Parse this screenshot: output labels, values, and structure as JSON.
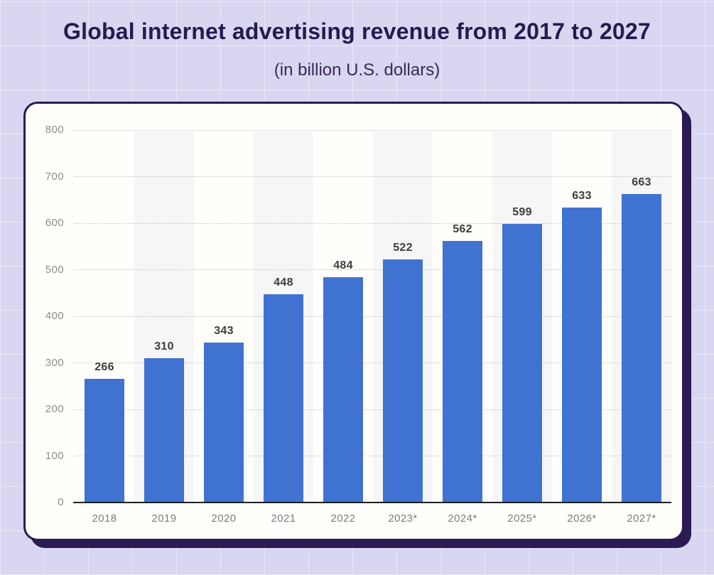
{
  "header": {
    "title": "Global internet advertising revenue from 2017 to 2027",
    "subtitle": "(in billion U.S. dollars)"
  },
  "chart_data": {
    "type": "bar",
    "title": "Global internet advertising revenue from 2017 to 2027",
    "subtitle": "(in billion U.S. dollars)",
    "categories": [
      "2018",
      "2019",
      "2020",
      "2021",
      "2022",
      "2023*",
      "2024*",
      "2025*",
      "2026*",
      "2027*"
    ],
    "values": [
      266,
      310,
      343,
      448,
      484,
      522,
      562,
      599,
      633,
      663
    ],
    "xlabel": "",
    "ylabel": "",
    "ylim": [
      0,
      800
    ],
    "yticks": [
      0,
      100,
      200,
      300,
      400,
      500,
      600,
      700,
      800
    ],
    "grid": "horizontal-dotted",
    "legend": "none",
    "bar_color": "#4072d2",
    "band_color": "#f6f6f6",
    "value_label_color": "#3d3d3d",
    "x_tick_color": "#7c7c7c",
    "y_tick_color": "#8c8c8c",
    "gridline_color": "#c6c6c6",
    "axis_line_color": "#1f1f1f"
  },
  "theme": {
    "page_background": "#d9d6f1",
    "page_grid_line": "rgba(255,255,255,0.45)",
    "card_background": "#fffefa",
    "card_border": "#2b1b52",
    "card_shadow": "#2b1b52",
    "title_color": "#261b4e",
    "subtitle_color": "#372a52"
  }
}
